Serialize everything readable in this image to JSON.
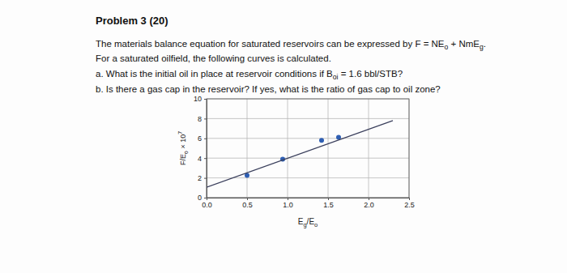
{
  "document": {
    "title": "Problem 3 (20)",
    "lines": [
      [
        {
          "text": "The materials balance equation for saturated reservoirs can be expressed by F = NE"
        },
        {
          "text": "o",
          "sub": true
        },
        {
          "text": " + NmE"
        },
        {
          "text": "g",
          "sub": true
        },
        {
          "text": "."
        }
      ],
      [
        {
          "text": "For a saturated oilfield, the following curves is calculated."
        }
      ],
      [
        {
          "text": "a. What is the initial oil in place at reservoir conditions if B"
        },
        {
          "text": "oi",
          "sub": true
        },
        {
          "text": " = 1.6 bbl/STB?"
        }
      ],
      [
        {
          "text": "b. Is there a gas cap in the reservoir? If yes, what is the ratio of gas cap to oil zone?"
        }
      ]
    ]
  },
  "chart_data": {
    "type": "scatter",
    "xlabel": [
      {
        "text": "E"
      },
      {
        "text": "g",
        "sub": true
      },
      {
        "text": "/E"
      },
      {
        "text": "o",
        "sub": true
      }
    ],
    "ylabel": [
      {
        "text": "F/E"
      },
      {
        "text": "o",
        "sub": true
      },
      {
        "text": " × 10"
      },
      {
        "text": "7",
        "sup": true
      }
    ],
    "xlim": [
      0,
      2.5
    ],
    "ylim": [
      0,
      10
    ],
    "xticks": [
      {
        "value": 0,
        "label": "0.0"
      },
      0.5,
      {
        "value": 1,
        "label": "1.0"
      },
      1.5,
      {
        "value": 2,
        "label": "2.0"
      },
      2.5
    ],
    "yticks": [
      0,
      2,
      4,
      6,
      8,
      10
    ],
    "grid": true,
    "series": [
      {
        "type": "scatter",
        "color": "#2f5fb3",
        "marker": "circle",
        "x": [
          0.5,
          0.94,
          1.42,
          1.63
        ],
        "values": [
          2.26,
          3.9,
          5.8,
          6.1
        ]
      },
      {
        "type": "line",
        "color": "#3a3f5c",
        "line_style": "solid",
        "x": [
          0,
          2.3
        ],
        "values": [
          1.05,
          7.8
        ]
      }
    ]
  }
}
